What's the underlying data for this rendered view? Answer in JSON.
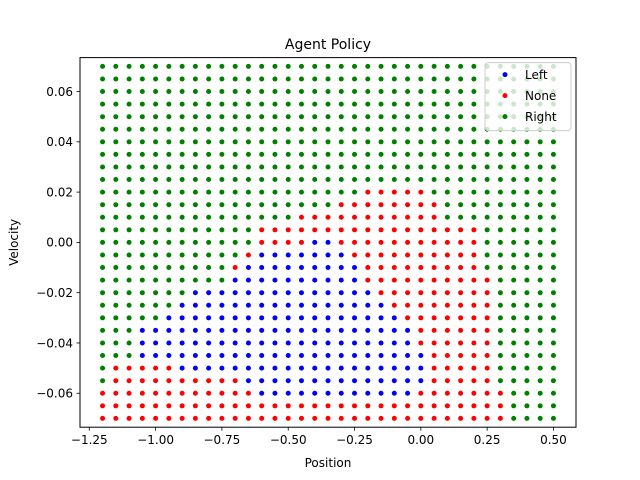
{
  "chart_data": {
    "type": "scatter",
    "title": "Agent Policy",
    "xlabel": "Position",
    "ylabel": "Velocity",
    "xlim": [
      -1.285,
      0.585
    ],
    "ylim": [
      -0.0735,
      0.0735
    ],
    "x_ticks": [
      -1.25,
      -1.0,
      -0.75,
      -0.5,
      -0.25,
      0.0,
      0.25,
      0.5
    ],
    "x_tick_labels": [
      "−1.25",
      "−1.00",
      "−0.75",
      "−0.50",
      "−0.25",
      "0.00",
      "0.25",
      "0.50"
    ],
    "y_ticks": [
      -0.06,
      -0.04,
      -0.02,
      0.0,
      0.02,
      0.04,
      0.06
    ],
    "y_tick_labels": [
      "−0.06",
      "−0.04",
      "−0.02",
      "0.00",
      "0.02",
      "0.04",
      "0.06"
    ],
    "grid": false,
    "legend_position": "top-right",
    "grid_sampling": {
      "x": {
        "start": -1.2,
        "stop": 0.5,
        "num": 35
      },
      "y": {
        "start": -0.07,
        "stop": 0.07,
        "num": 29
      }
    },
    "series": [
      {
        "name": "Left",
        "color": "#0000ff",
        "action": 0
      },
      {
        "name": "None",
        "color": "#ff0000",
        "action": 1
      },
      {
        "name": "Right",
        "color": "#008000",
        "action": 2
      }
    ],
    "policy_rows": [
      "22222222222222222222222222222222222",
      "22222222222222222222222222222222222",
      "22222222222222222222222222222222222",
      "22222222222222222222222222222222222",
      "22222222222222222222222222222222222",
      "22222222222222222222222222222222222",
      "22222222222222222222222222222222222",
      "22222222222222222222222222222222222",
      "22222222222222222222222222222222222",
      "22222222222222222222222222222222222",
      "22222222222222222222111112222222222",
      "22222222222222222211111111222222222",
      "22222222222222211111111111222222222",
      "22222222222211111111111111111222222",
      "22222222222211110011111111111222222",
      "22222222222100000001111111111222222",
      "22222222221000000000111111111222222",
      "22222222220000000000111111111122222",
      "22222220000000000000011111111122222",
      "22222200000000000000001111111122222",
      "22222000000000000000000111111122222",
      "22200000000000000000000011111122222",
      "22200000000000000000000011111122222",
      "22200000000000000000000001111122222",
      "21111100000000000000000001111122222",
      "21111111111000000000000001111122222",
      "11111111111100000000000011111112222",
      "11111111111111111111111111111112222",
      "11111111111111111111111111111112222"
    ]
  }
}
